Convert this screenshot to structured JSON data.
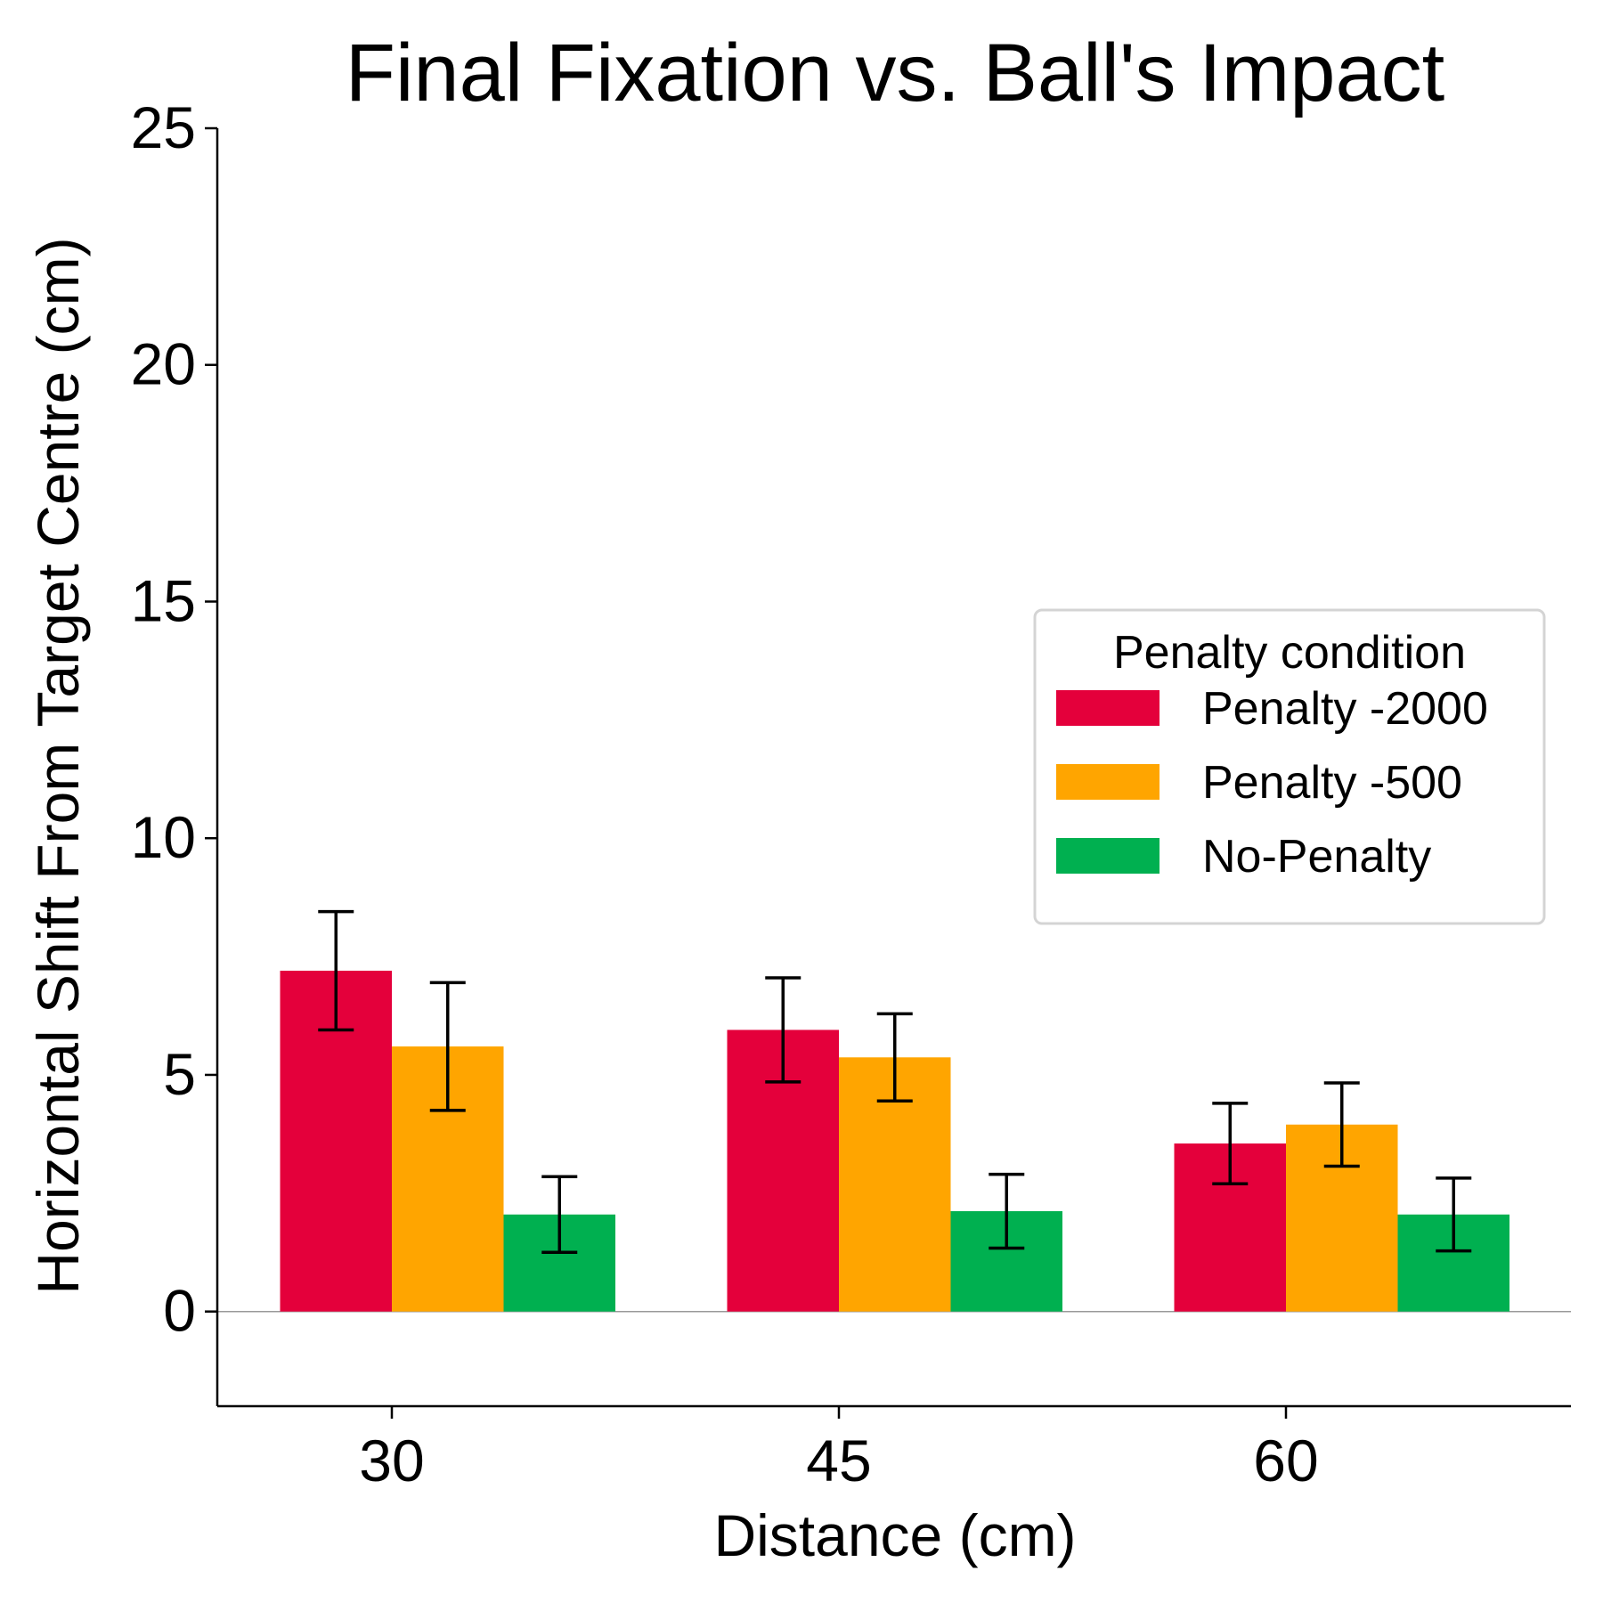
{
  "chart_data": {
    "type": "bar",
    "title": "Final Fixation vs. Ball's Impact",
    "xlabel": "Distance (cm)",
    "ylabel": "Horizontal Shift From Target Centre (cm)",
    "categories": [
      "30",
      "45",
      "60"
    ],
    "ylim": [
      -2,
      25
    ],
    "yticks": [
      0,
      5,
      10,
      15,
      20,
      25
    ],
    "legend": {
      "title": "Penalty condition",
      "placement": "center-right"
    },
    "series": [
      {
        "name": "Penalty -2000",
        "color": "#e4003b",
        "values": [
          7.2,
          5.95,
          3.55
        ],
        "err": [
          1.25,
          1.1,
          0.85
        ]
      },
      {
        "name": "Penalty -500",
        "color": "#ffa500",
        "values": [
          5.6,
          5.37,
          3.95
        ],
        "err": [
          1.35,
          0.92,
          0.88
        ]
      },
      {
        "name": "No-Penalty",
        "color": "#00b050",
        "values": [
          2.05,
          2.12,
          2.05
        ],
        "err": [
          0.8,
          0.78,
          0.77
        ]
      }
    ]
  }
}
